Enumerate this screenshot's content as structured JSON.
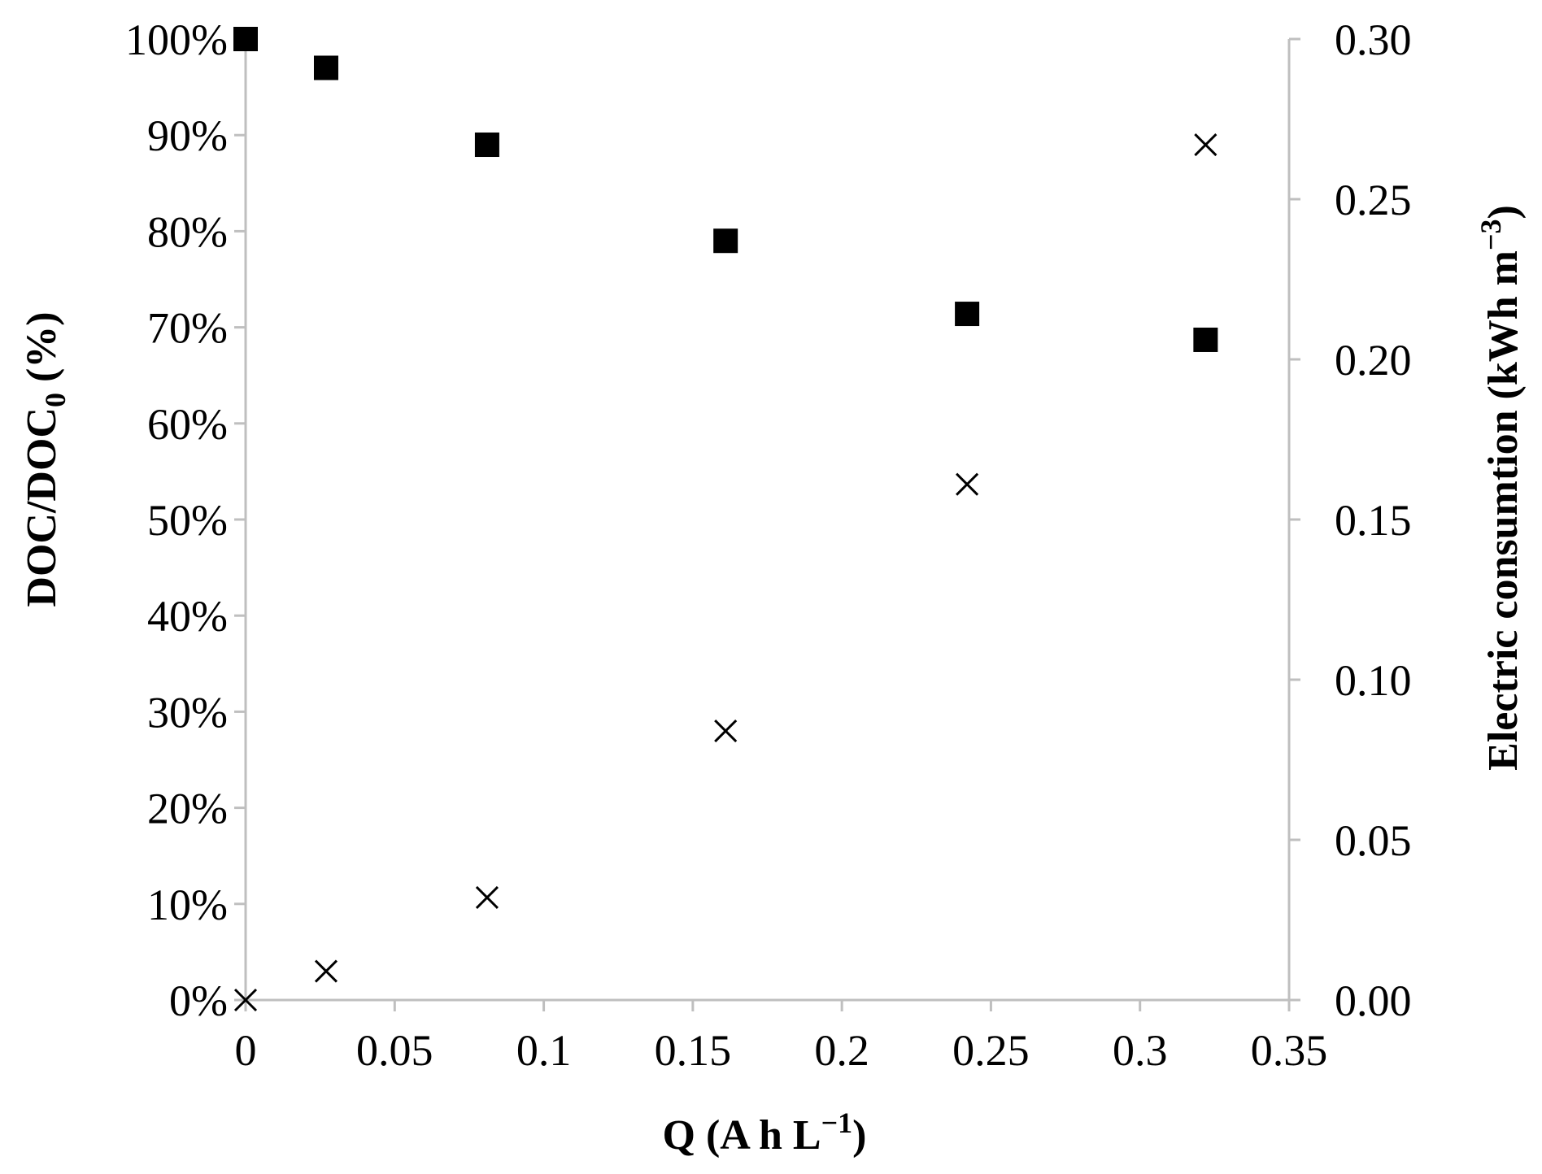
{
  "chart_data": {
    "type": "scatter",
    "title": "",
    "xlabel": "Q (A h L−1)",
    "xlabel_parts": {
      "main": "Q (A h L",
      "sup": "−1",
      "end": ")"
    },
    "ylabel_left": "DOC/DOC0 (%)",
    "ylabel_left_parts": {
      "main": "DOC/DOC",
      "sub": "0",
      "end": " (%)"
    },
    "ylabel_right": "Electric consumtion (kWh m−3)",
    "ylabel_right_parts": {
      "main": "Electric consumtion (kWh m",
      "sup": "−3",
      "end": ")"
    },
    "x_ticks": [
      "0",
      "0.05",
      "0.1",
      "0.15",
      "0.2",
      "0.25",
      "0.3",
      "0.35"
    ],
    "y_left_ticks": [
      "0%",
      "10%",
      "20%",
      "30%",
      "40%",
      "50%",
      "60%",
      "70%",
      "80%",
      "90%",
      "100%"
    ],
    "y_right_ticks": [
      "0.00",
      "0.05",
      "0.10",
      "0.15",
      "0.20",
      "0.25",
      "0.30"
    ],
    "xlim": [
      0,
      0.35
    ],
    "ylim_left": [
      0,
      1.0
    ],
    "ylim_right": [
      0,
      0.3
    ],
    "grid": false,
    "series": [
      {
        "axis": "left",
        "marker": "square",
        "color": "#000000",
        "x": [
          0,
          0.027,
          0.081,
          0.161,
          0.242,
          0.322
        ],
        "y": [
          1.0,
          0.97,
          0.89,
          0.79,
          0.714,
          0.687
        ]
      },
      {
        "axis": "right",
        "marker": "x",
        "color": "#000000",
        "x": [
          0,
          0.027,
          0.081,
          0.161,
          0.242,
          0.322
        ],
        "y": [
          0.0,
          0.009,
          0.032,
          0.084,
          0.161,
          0.267
        ]
      }
    ]
  }
}
